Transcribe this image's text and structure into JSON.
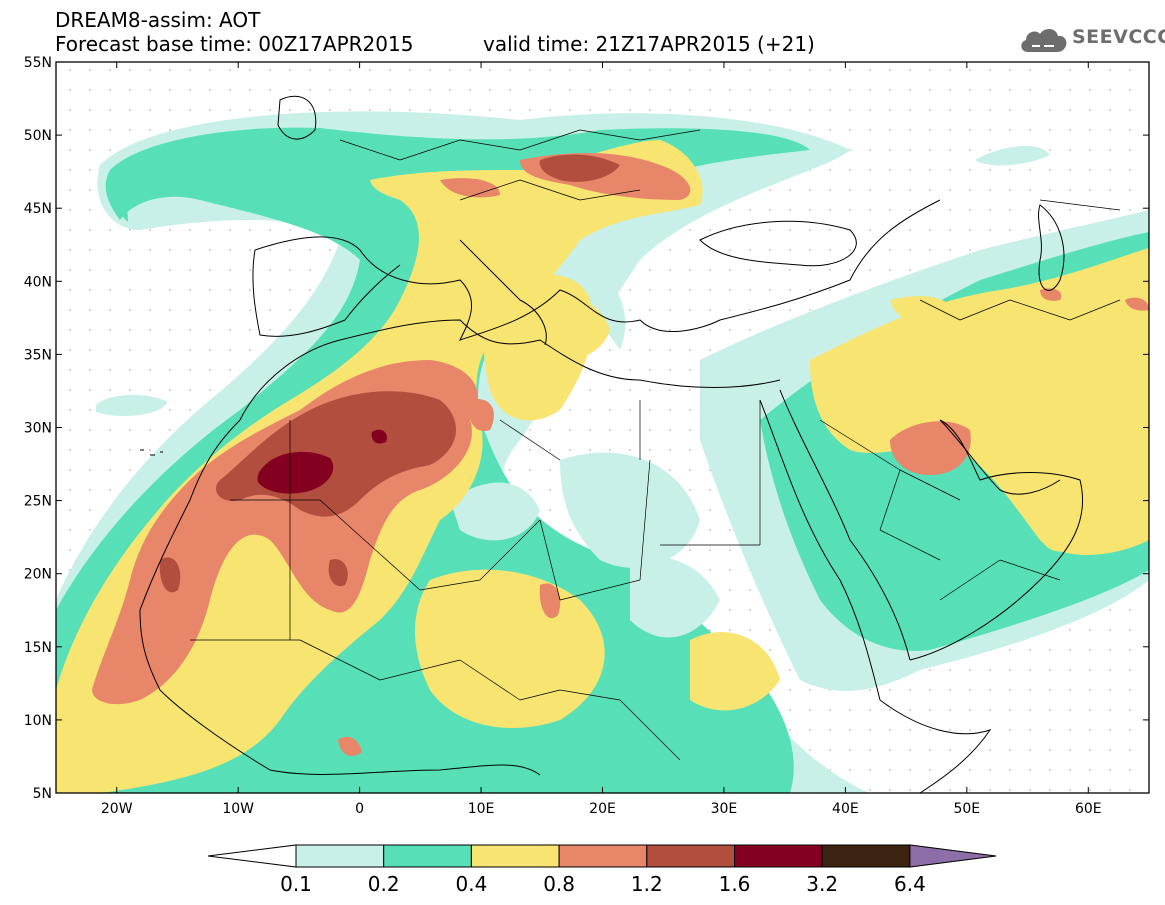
{
  "header": {
    "model_line": "DREAM8-assim: AOT",
    "base_time_line": "Forecast base time: 00Z17APR2015",
    "valid_time_line": "valid time: 21Z17APR2015 (+21)"
  },
  "logo": {
    "text": "SEEVCCC",
    "icon": "cloud-icon"
  },
  "axes": {
    "lat_labels": [
      "55N",
      "50N",
      "45N",
      "40N",
      "35N",
      "30N",
      "25N",
      "20N",
      "15N",
      "10N",
      "5N"
    ],
    "lon_labels": [
      "20W",
      "10W",
      "0",
      "10E",
      "20E",
      "30E",
      "40E",
      "50E",
      "60E"
    ]
  },
  "colorbar": {
    "levels": [
      "0.1",
      "0.2",
      "0.4",
      "0.8",
      "1.2",
      "1.6",
      "3.2",
      "6.4"
    ],
    "colors": [
      "#ffffff",
      "#c8f0e8",
      "#57e0b8",
      "#f8e470",
      "#e8866a",
      "#b24e3e",
      "#840020",
      "#3c2210",
      "#8e6ea8"
    ]
  },
  "field_colors": {
    "c1": "#c8f0e8",
    "c2": "#57e0b8",
    "c3": "#f8e470",
    "c4": "#e8866a",
    "c5": "#b24e3e",
    "c6": "#840020"
  }
}
